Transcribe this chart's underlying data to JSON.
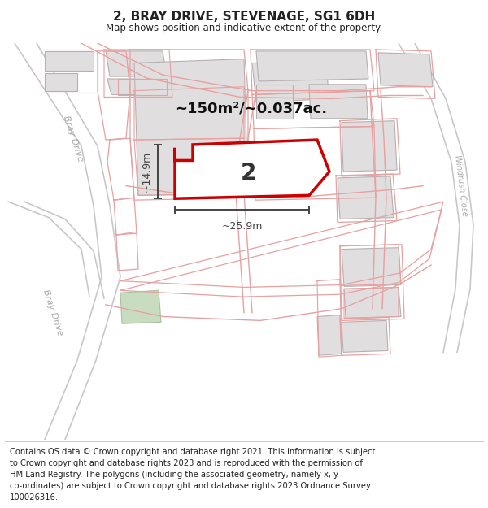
{
  "title": "2, BRAY DRIVE, STEVENAGE, SG1 6DH",
  "subtitle": "Map shows position and indicative extent of the property.",
  "area_label": "~150m²/~0.037ac.",
  "width_label": "~25.9m",
  "height_label": "~14.9m",
  "plot_number": "2",
  "footer_lines": [
    "Contains OS data © Crown copyright and database right 2021. This information is subject",
    "to Crown copyright and database rights 2023 and is reproduced with the permission of",
    "HM Land Registry. The polygons (including the associated geometry, namely x, y",
    "co-ordinates) are subject to Crown copyright and database rights 2023 Ordnance Survey",
    "100026316."
  ],
  "map_bg": "#ffffff",
  "road_gray": "#c8c8c8",
  "road_fill": "#f0f0f0",
  "building_fill": "#e0dede",
  "building_stroke": "#b8b0b0",
  "prop_outline_color": "#e8a0a0",
  "prop_road_color": "#d08080",
  "highlight_fill": "#ffffff",
  "highlight_stroke": "#cc0000",
  "dim_color": "#444444",
  "text_color": "#222222",
  "road_label_color": "#aaaaaa",
  "green_fill": "#c8dcc0",
  "green_stroke": "#a8c0a0"
}
